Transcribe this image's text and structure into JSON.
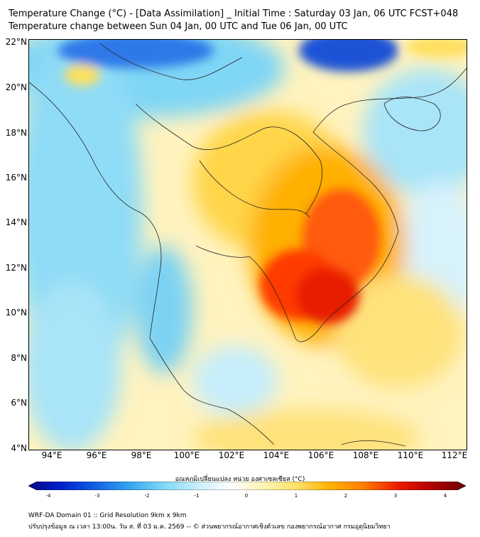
{
  "title": {
    "line1": "Temperature Change (°C) - [Data Assimilation] _ Initial Time : Saturday 03 Jan, 06 UTC FCST+048",
    "line2": "Temperature change between Sun 04 Jan, 00 UTC and Tue 06 Jan, 00 UTC"
  },
  "lat_labels": [
    "22°N",
    "20°N",
    "18°N",
    "16°N",
    "14°N",
    "12°N",
    "10°N",
    "8°N",
    "6°N",
    "4°N"
  ],
  "lon_labels": [
    "94°E",
    "96°E",
    "98°E",
    "100°E",
    "102°E",
    "104°E",
    "106°E",
    "108°E",
    "110°E",
    "112°E"
  ],
  "colorbar": {
    "label": "อุณหภูมิเปลี่ยนแปลง หน่วย องศาเซลเซียส (°C)",
    "ticks": [
      "-4",
      "-3",
      "-2",
      "-1",
      "0",
      "1",
      "2",
      "3",
      "4"
    ],
    "range": [
      -4,
      4
    ],
    "colors": [
      "#08088a",
      "#0022cc",
      "#1460e6",
      "#35a5f0",
      "#7dd8f7",
      "#c6eefb",
      "#ffffff",
      "#fff4b3",
      "#ffe066",
      "#ffb000",
      "#ff7a00",
      "#ee1a00",
      "#b00000",
      "#6e0000"
    ]
  },
  "footer": {
    "line1": "WRF-DA Domain 01 :: Grid Resolution 9km x 9km",
    "line2": "ปรับปรุงข้อมูล ณ เวลา 13:00น. วัน ส. ที่ 03 ม.ค. 2569 -- © ส่วนพยากรณ์อากาศเชิงตัวเลข กองพยากรณ์อากาศ กรมอุตุนิยมวิทยา"
  }
}
